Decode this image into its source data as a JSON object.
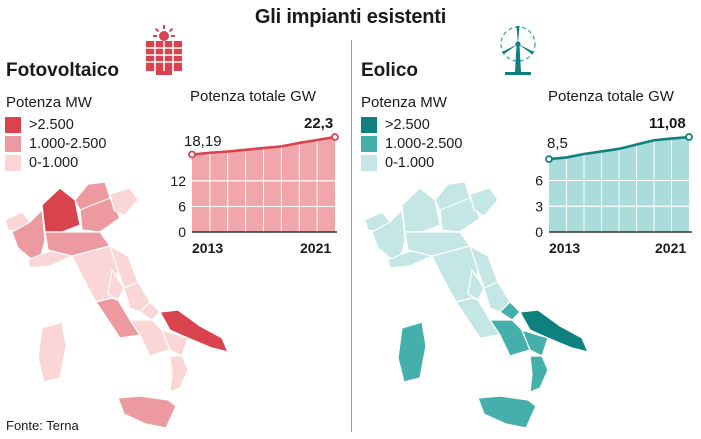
{
  "title": "Gli impianti esistenti",
  "source": "Fonte: Terna",
  "colors": {
    "solar_dark": "#d9434e",
    "solar_mid": "#ec9aa0",
    "solar_light": "#fad6d7",
    "solar_area": "#f0a6ab",
    "wind_dark": "#0f8080",
    "wind_mid": "#45b0ab",
    "wind_light": "#c4e6e5",
    "wind_area": "#a9dcda"
  },
  "solar": {
    "panel_title": "Fotovoltaico",
    "icon": "solar-panel-icon",
    "legend_title": "Potenza MW",
    "legend": [
      ">2.500",
      "1.000-2.500",
      "0-1.000"
    ],
    "chart_title": "Potenza totale GW",
    "first_value_label": "18,19",
    "last_value_label": "22,3",
    "x_start_label": "2013",
    "x_end_label": "2021"
  },
  "wind": {
    "panel_title": "Eolico",
    "icon": "wind-turbine-icon",
    "legend_title": "Potenza MW",
    "legend": [
      ">2.500",
      "1.000-2.500",
      "0-1.000"
    ],
    "chart_title": "Potenza totale GW",
    "first_value_label": "8,5",
    "last_value_label": "11,08",
    "x_start_label": "2013",
    "x_end_label": "2021"
  },
  "chart_data": [
    {
      "type": "area",
      "title": "Potenza totale GW",
      "x": [
        2013,
        2014,
        2015,
        2016,
        2017,
        2018,
        2019,
        2020,
        2021
      ],
      "x_tick_labels": [
        "2013",
        "2021"
      ],
      "series": [
        {
          "values": [
            18.19,
            18.6,
            18.9,
            19.3,
            19.7,
            20.1,
            20.9,
            21.6,
            22.3
          ]
        }
      ],
      "y_ticks": [
        0,
        6,
        12
      ],
      "ylim": [
        0,
        22.3
      ],
      "grid": true
    },
    {
      "type": "area",
      "title": "Potenza totale GW",
      "x": [
        2013,
        2014,
        2015,
        2016,
        2017,
        2018,
        2019,
        2020,
        2021
      ],
      "x_tick_labels": [
        "2013",
        "2021"
      ],
      "series": [
        {
          "values": [
            8.5,
            8.7,
            9.1,
            9.4,
            9.7,
            10.2,
            10.7,
            10.9,
            11.08
          ]
        }
      ],
      "y_ticks": [
        0,
        3,
        6
      ],
      "ylim": [
        0,
        11.08
      ],
      "grid": true
    }
  ]
}
